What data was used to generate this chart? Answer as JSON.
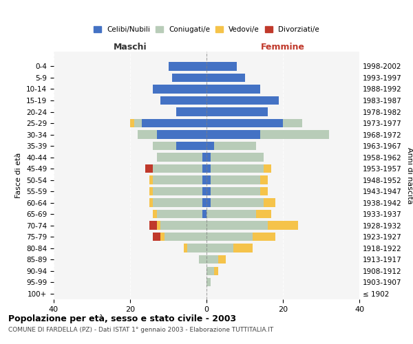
{
  "age_groups": [
    "100+",
    "95-99",
    "90-94",
    "85-89",
    "80-84",
    "75-79",
    "70-74",
    "65-69",
    "60-64",
    "55-59",
    "50-54",
    "45-49",
    "40-44",
    "35-39",
    "30-34",
    "25-29",
    "20-24",
    "15-19",
    "10-14",
    "5-9",
    "0-4"
  ],
  "birth_years": [
    "≤ 1902",
    "1903-1907",
    "1908-1912",
    "1913-1917",
    "1918-1922",
    "1923-1927",
    "1928-1932",
    "1933-1937",
    "1938-1942",
    "1943-1947",
    "1948-1952",
    "1953-1957",
    "1958-1962",
    "1963-1967",
    "1968-1972",
    "1973-1977",
    "1978-1982",
    "1983-1987",
    "1988-1992",
    "1993-1997",
    "1998-2002"
  ],
  "colors": {
    "celibi": "#4472C4",
    "coniugati": "#B8CCB8",
    "vedovi": "#F5C34A",
    "divorziati": "#C0392B"
  },
  "maschi": {
    "celibi": [
      0,
      0,
      0,
      0,
      0,
      0,
      0,
      1,
      1,
      1,
      1,
      1,
      1,
      8,
      13,
      17,
      8,
      12,
      14,
      9,
      10
    ],
    "coniugati": [
      0,
      0,
      0,
      2,
      5,
      11,
      12,
      12,
      13,
      13,
      13,
      13,
      12,
      6,
      5,
      2,
      0,
      0,
      0,
      0,
      0
    ],
    "vedovi": [
      0,
      0,
      0,
      0,
      1,
      1,
      1,
      1,
      1,
      1,
      1,
      0,
      0,
      0,
      0,
      1,
      0,
      0,
      0,
      0,
      0
    ],
    "divorziati": [
      0,
      0,
      0,
      0,
      0,
      2,
      2,
      0,
      0,
      0,
      0,
      2,
      0,
      0,
      0,
      0,
      0,
      0,
      0,
      0,
      0
    ]
  },
  "femmine": {
    "celibi": [
      0,
      0,
      0,
      0,
      0,
      0,
      0,
      0,
      1,
      1,
      1,
      1,
      1,
      2,
      14,
      20,
      16,
      19,
      14,
      10,
      8
    ],
    "coniugati": [
      0,
      1,
      2,
      3,
      7,
      12,
      16,
      13,
      14,
      13,
      13,
      14,
      14,
      11,
      18,
      5,
      0,
      0,
      0,
      0,
      0
    ],
    "vedovi": [
      0,
      0,
      1,
      2,
      5,
      6,
      8,
      4,
      3,
      2,
      2,
      2,
      0,
      0,
      0,
      0,
      0,
      0,
      0,
      0,
      0
    ],
    "divorziati": [
      0,
      0,
      0,
      0,
      0,
      0,
      0,
      0,
      0,
      0,
      0,
      0,
      0,
      0,
      0,
      0,
      0,
      0,
      0,
      0,
      0
    ]
  },
  "xlim": 40,
  "title": "Popolazione per età, sesso e stato civile - 2003",
  "subtitle": "COMUNE DI FARDELLA (PZ) - Dati ISTAT 1° gennaio 2003 - Elaborazione TUTTITALIA.IT",
  "ylabel_left": "Fasce di età",
  "ylabel_right": "Anni di nascita",
  "xlabel_left": "Maschi",
  "xlabel_right": "Femmine",
  "legend_labels": [
    "Celibi/Nubili",
    "Coniugati/e",
    "Vedovi/e",
    "Divorziati/e"
  ],
  "bg_color": "#f5f5f5"
}
